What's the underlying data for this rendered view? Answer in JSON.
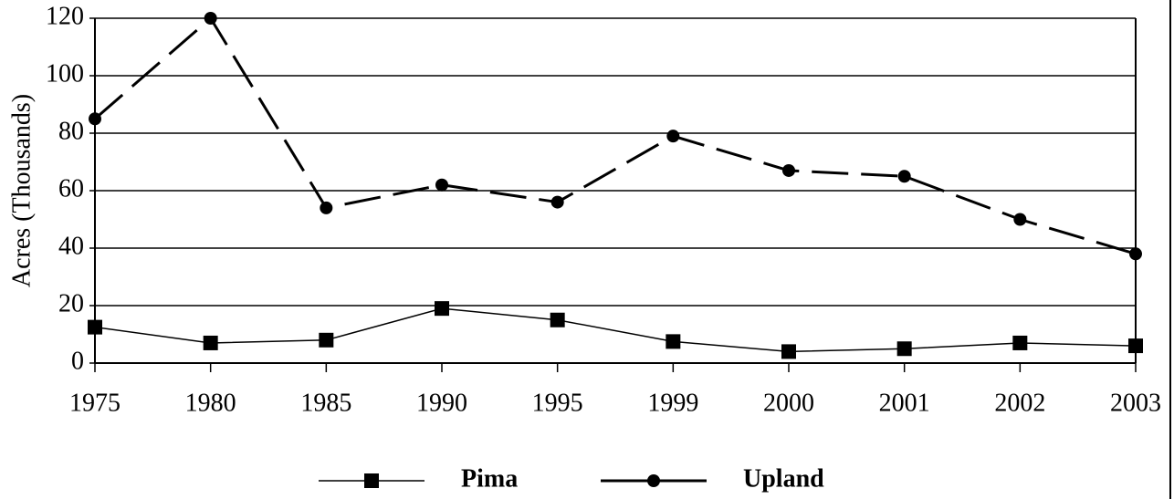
{
  "chart_data": {
    "type": "line",
    "y_label": "Acres (Thousands)",
    "categories": [
      "1975",
      "1980",
      "1985",
      "1990",
      "1995",
      "1999",
      "2000",
      "2001",
      "2002",
      "2003"
    ],
    "series": [
      {
        "name": "Pima",
        "color": "#000000",
        "marker": "square",
        "dash": "solid",
        "values": [
          12.5,
          7,
          8,
          19,
          15,
          7.5,
          4,
          5,
          7,
          6
        ]
      },
      {
        "name": "Upland",
        "color": "#000000",
        "marker": "circle",
        "dash": "dashed",
        "values": [
          85,
          120,
          54,
          62,
          56,
          79,
          67,
          65,
          50,
          38
        ]
      }
    ],
    "ylim": [
      0,
      120
    ],
    "yticks": [
      0,
      20,
      40,
      60,
      80,
      100,
      120
    ],
    "grid": true,
    "legend": "bottom"
  }
}
